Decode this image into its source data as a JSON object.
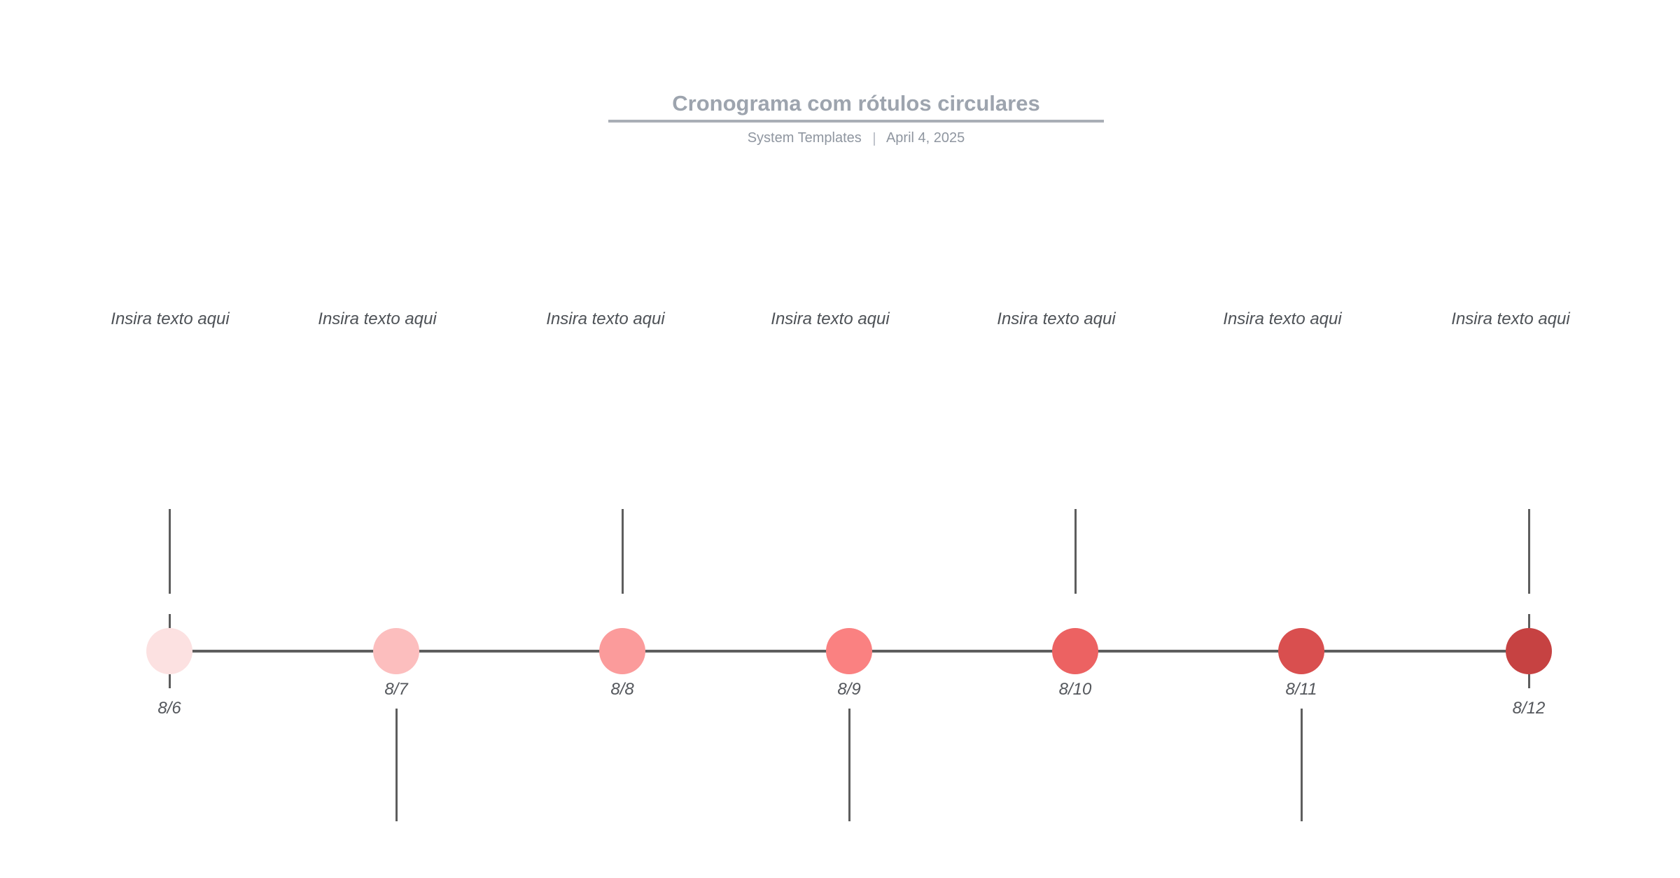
{
  "page": {
    "background": "#ffffff"
  },
  "header": {
    "title": "Cronograma com rótulos circulares",
    "subtitle_left": "System Templates",
    "subtitle_separator": "|",
    "subtitle_right": "April 4, 2025",
    "title_color": "#9DA4AE",
    "rule_color": "#A9AEB6",
    "subtitle_color": "#8F96A0"
  },
  "timeline": {
    "line_color": "#5E5E5E",
    "label_text_color": "#4E5257",
    "date_text_color": "#54575C",
    "placeholder_text": "Insira texto aqui",
    "items": [
      {
        "label": "Insira texto aqui",
        "date": "8/6",
        "color": "#FCE1E1",
        "branch": "up",
        "endpoint": true
      },
      {
        "label": "Insira texto aqui",
        "date": "8/7",
        "color": "#FCBEBE",
        "branch": "down",
        "endpoint": false
      },
      {
        "label": "Insira texto aqui",
        "date": "8/8",
        "color": "#FB9B9B",
        "branch": "up",
        "endpoint": false
      },
      {
        "label": "Insira texto aqui",
        "date": "8/9",
        "color": "#FA8181",
        "branch": "down",
        "endpoint": false
      },
      {
        "label": "Insira texto aqui",
        "date": "8/10",
        "color": "#EC6262",
        "branch": "up",
        "endpoint": false
      },
      {
        "label": "Insira texto aqui",
        "date": "8/11",
        "color": "#D94F4F",
        "branch": "down",
        "endpoint": false
      },
      {
        "label": "Insira texto aqui",
        "date": "8/12",
        "color": "#C64242",
        "branch": "up",
        "endpoint": true
      }
    ]
  }
}
